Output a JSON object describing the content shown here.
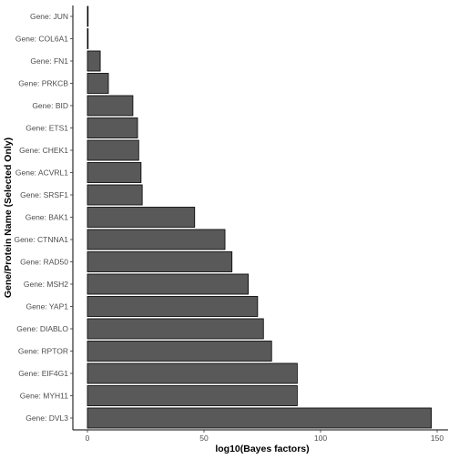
{
  "chart_data": {
    "type": "bar",
    "orientation": "horizontal",
    "xlabel": "log10(Bayes factors)",
    "ylabel": "Gene/Protein Name (Selected Only)",
    "xlim": [
      0,
      150
    ],
    "x_ticks": [
      "0",
      "50",
      "100",
      "150"
    ],
    "grid": false,
    "categories": [
      "Gene: JUN",
      "Gene: COL6A1",
      "Gene: FN1",
      "Gene: PRKCB",
      "Gene: BID",
      "Gene: ETS1",
      "Gene: CHEK1",
      "Gene: ACVRL1",
      "Gene: SRSF1",
      "Gene: BAK1",
      "Gene: CTNNA1",
      "Gene: RAD50",
      "Gene: MSH2",
      "Gene: YAP1",
      "Gene: DIABLO",
      "Gene: RPTOR",
      "Gene: EIF4G1",
      "Gene: MYH11",
      "Gene: DVL3"
    ],
    "values": [
      0.3,
      0.3,
      5.5,
      9,
      19.5,
      21.5,
      22,
      23,
      23.5,
      46,
      59,
      62,
      69,
      73,
      75.5,
      79,
      90,
      90,
      147.5
    ],
    "bar_color": "#595959",
    "bar_edge_color": "#000000"
  }
}
